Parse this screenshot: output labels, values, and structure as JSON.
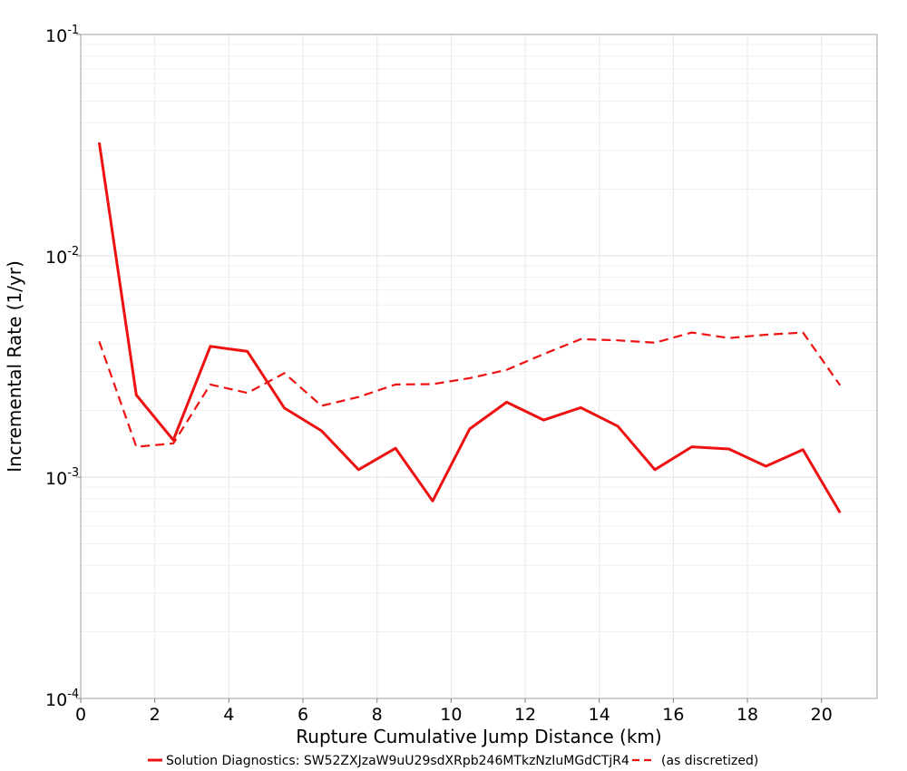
{
  "chart_data": {
    "type": "line",
    "title": "",
    "xlabel": "Rupture Cumulative Jump Distance (km)",
    "ylabel": "Incremental Rate (1/yr)",
    "xlim": [
      0,
      21.5
    ],
    "ylim": [
      0.0001,
      0.1
    ],
    "y_scale": "log",
    "x_ticks": [
      0,
      2,
      4,
      6,
      8,
      10,
      12,
      14,
      16,
      18,
      20
    ],
    "y_ticks": [
      {
        "value": 0.1,
        "base": "10",
        "exp": "-1"
      },
      {
        "value": 0.01,
        "base": "10",
        "exp": "-2"
      },
      {
        "value": 0.001,
        "base": "10",
        "exp": "-3"
      },
      {
        "value": 0.0001,
        "base": "10",
        "exp": "-4"
      }
    ],
    "grid": true,
    "legend_position": "bottom",
    "x": [
      0.5,
      1.5,
      2.5,
      3.5,
      4.5,
      5.5,
      6.5,
      7.5,
      8.5,
      9.5,
      10.5,
      11.5,
      12.5,
      13.5,
      14.5,
      15.5,
      16.5,
      17.5,
      18.5,
      19.5,
      20.5
    ],
    "series": [
      {
        "name": "Solution Diagnostics: SW52ZXJzaW9uU29sdXRpb246MTkzNzIuMGdCTjR4",
        "style": "solid",
        "color": "#ee1111",
        "values": [
          0.0325,
          0.00235,
          0.00147,
          0.0039,
          0.0037,
          0.00205,
          0.00162,
          0.00108,
          0.00135,
          0.00078,
          0.00165,
          0.00218,
          0.00181,
          0.00206,
          0.0017,
          0.00108,
          0.00137,
          0.00134,
          0.00112,
          0.00133,
          0.00069
        ]
      },
      {
        "name": "(as discretized)",
        "style": "dashed",
        "color": "#ee1111",
        "values": [
          0.0041,
          0.00137,
          0.00142,
          0.00262,
          0.0024,
          0.00295,
          0.0021,
          0.0023,
          0.00262,
          0.00263,
          0.0028,
          0.00305,
          0.0036,
          0.0042,
          0.00415,
          0.00405,
          0.0045,
          0.00425,
          0.0044,
          0.0045,
          0.0026
        ]
      }
    ]
  }
}
